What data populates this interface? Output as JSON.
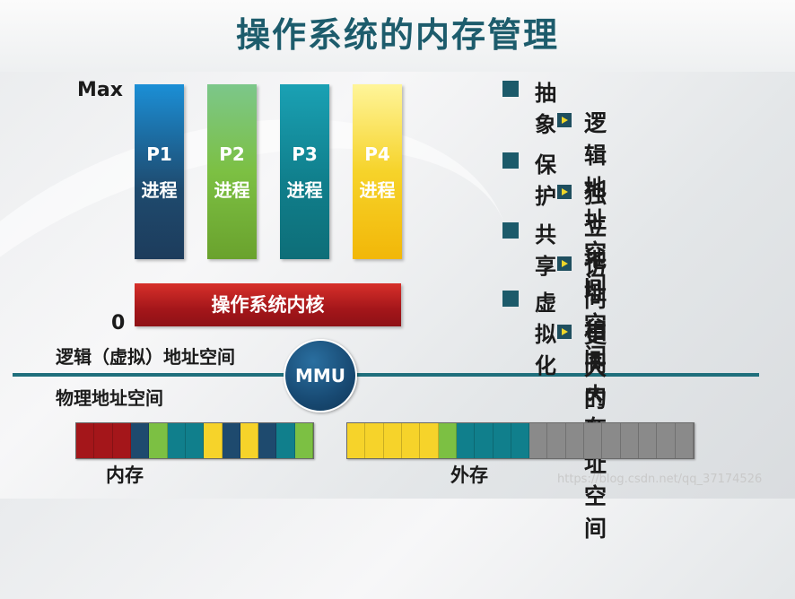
{
  "title": "操作系统的内存管理",
  "axis": {
    "max_label": "Max",
    "min_label": "0"
  },
  "processes": [
    {
      "name": "P1",
      "label": "进程"
    },
    {
      "name": "P2",
      "label": "进程"
    },
    {
      "name": "P3",
      "label": "进程"
    },
    {
      "name": "P4",
      "label": "进程"
    }
  ],
  "kernel_label": "操作系统内核",
  "logical_space_label": "逻辑（虚拟）地址空间",
  "physical_space_label": "物理地址空间",
  "mmu_label": "MMU",
  "bullets": [
    {
      "heading": "抽象",
      "sub": "逻辑地址空间"
    },
    {
      "heading": "保护",
      "sub": "独立地址空间"
    },
    {
      "heading": "共享",
      "sub": "访问相同内存"
    },
    {
      "heading": "虚拟化",
      "sub": "更大的地址空间"
    }
  ],
  "memory_label": "内存",
  "storage_label": "外存",
  "colors": {
    "kernel": "#a4161a",
    "p1": "#1e4a6e",
    "p2": "#7cc043",
    "p3": "#107f8c",
    "p4": "#f6d32a",
    "unused": "#8a8a8a",
    "divider": "#1f6f7c"
  },
  "memory_cells": [
    "kernel",
    "kernel",
    "kernel",
    "p1",
    "p2",
    "p3",
    "p3",
    "p4",
    "p1",
    "p4",
    "p1",
    "p3",
    "p2"
  ],
  "storage_cells": [
    "p4",
    "p4",
    "p4",
    "p4",
    "p4",
    "p2",
    "p3",
    "p3",
    "p3",
    "p3",
    "unused",
    "unused",
    "unused",
    "unused",
    "unused",
    "unused",
    "unused",
    "unused",
    "unused"
  ],
  "watermark": "https://blog.csdn.net/qq_37174526"
}
